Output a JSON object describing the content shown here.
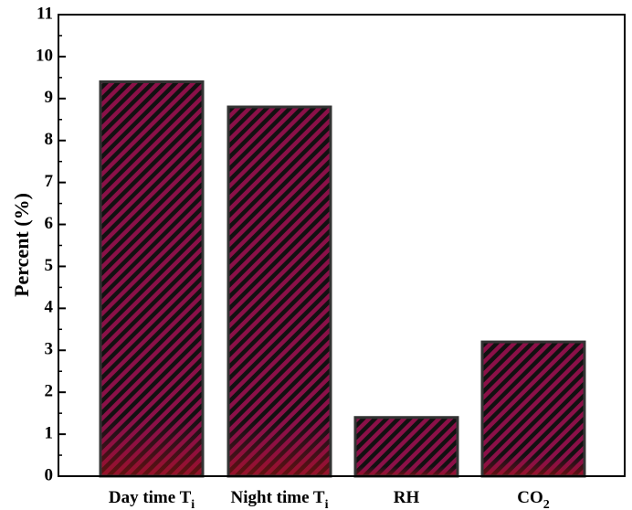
{
  "chart_data": {
    "type": "bar",
    "categories": [
      {
        "main": "Day time T",
        "sub": "i"
      },
      {
        "main": "Night time T",
        "sub": "i"
      },
      {
        "main": "RH",
        "sub": ""
      },
      {
        "main": "CO",
        "sub": "2"
      }
    ],
    "values": [
      9.4,
      8.8,
      1.4,
      3.2
    ],
    "title": "",
    "xlabel": "",
    "ylabel": "Percent (%)",
    "ylim": [
      0,
      11
    ],
    "yticks": [
      "0",
      "1",
      "2",
      "3",
      "4",
      "5",
      "6",
      "7",
      "8",
      "9",
      "10",
      "11"
    ],
    "grid": false,
    "bar_fill": "#8b1048",
    "bar_hatch": "#111111",
    "bar_edge": "#333333"
  }
}
